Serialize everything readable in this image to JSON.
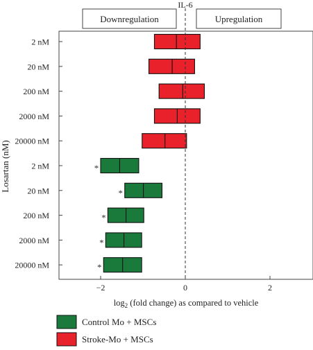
{
  "chart_data": {
    "type": "floating-bar",
    "title": "IL-6",
    "header_boxes": {
      "left": "Downregulation",
      "right": "Upregulation"
    },
    "ylabel": "Losartan (nM)",
    "xlabel_prefix": "log",
    "xlabel_sub": "2",
    "xlabel_suffix": " (fold change) as compared to vehicle",
    "xlim": [
      -2.6,
      2.6
    ],
    "xticks": [
      -2,
      0,
      2
    ],
    "xtick_labels": [
      "−2",
      "0",
      "2"
    ],
    "reference_line_x": 0,
    "categories": [
      "2 nM",
      "20 nM",
      "200 nM",
      "2000 nM",
      "20000 nM",
      "2 nM",
      "20 nM",
      "200 nM",
      "2000 nM",
      "20000 nM"
    ],
    "series": [
      {
        "name": "Stroke-Mo + MSCs",
        "color": "#e8212a",
        "rows": [
          0,
          1,
          2,
          3,
          4
        ],
        "min": [
          -0.73,
          -0.86,
          -0.62,
          -0.73,
          -1.02
        ],
        "mean": [
          -0.21,
          -0.31,
          -0.06,
          -0.19,
          -0.48
        ],
        "max": [
          0.35,
          0.22,
          0.45,
          0.35,
          0.03
        ],
        "significant": [
          false,
          false,
          false,
          false,
          false
        ]
      },
      {
        "name": "Control Mo + MSCs",
        "color": "#1a7a3c",
        "rows": [
          5,
          6,
          7,
          8,
          9
        ],
        "min": [
          -2.0,
          -1.43,
          -1.83,
          -1.88,
          -1.93
        ],
        "mean": [
          -1.55,
          -0.99,
          -1.4,
          -1.45,
          -1.48
        ],
        "max": [
          -1.1,
          -0.55,
          -0.98,
          -1.03,
          -1.03
        ],
        "significant": [
          true,
          true,
          true,
          true,
          true
        ]
      }
    ],
    "significance_marker": "*",
    "legend": [
      {
        "label": "Control Mo + MSCs",
        "color": "#1a7a3c"
      },
      {
        "label": "Stroke-Mo + MSCs",
        "color": "#e8212a"
      }
    ],
    "legend_position": "bottom"
  }
}
